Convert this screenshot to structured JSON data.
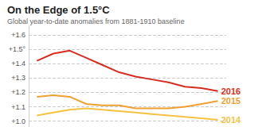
{
  "chart_data": {
    "type": "line",
    "title": "On the Edge of 1.5°C",
    "subtitle": "Global year-to-date anomalies from 1881-1910 baseline",
    "categories": [
      null,
      null,
      null,
      null,
      null,
      null,
      null,
      null,
      null,
      null,
      null,
      null
    ],
    "series": [
      {
        "name": "2016",
        "color": "#d62d20",
        "values": [
          1.42,
          1.47,
          1.49,
          1.44,
          1.39,
          1.34,
          1.31,
          1.29,
          1.27,
          1.24,
          1.23,
          1.21
        ]
      },
      {
        "name": "2015",
        "color": "#f0a030",
        "values": [
          1.17,
          1.18,
          1.17,
          1.12,
          1.11,
          1.11,
          1.09,
          1.09,
          1.09,
          1.1,
          1.12,
          1.14
        ]
      },
      {
        "name": "2014",
        "color": "#f5c242",
        "values": [
          1.04,
          1.06,
          1.08,
          1.09,
          1.08,
          1.07,
          1.06,
          1.05,
          1.04,
          1.03,
          1.02,
          1.01
        ]
      }
    ],
    "ylim": [
      0.96,
      1.66
    ],
    "yticks": [
      {
        "value": 1.0,
        "label": "+1.0"
      },
      {
        "value": 1.1,
        "label": "+1.1"
      },
      {
        "value": 1.2,
        "label": "+1.2"
      },
      {
        "value": 1.3,
        "label": "+1.3"
      },
      {
        "value": 1.4,
        "label": "+1.4"
      },
      {
        "value": 1.5,
        "label": "+1.5°"
      },
      {
        "value": 1.6,
        "label": "+1.6"
      }
    ],
    "grid": true,
    "tick_labels": "y"
  }
}
